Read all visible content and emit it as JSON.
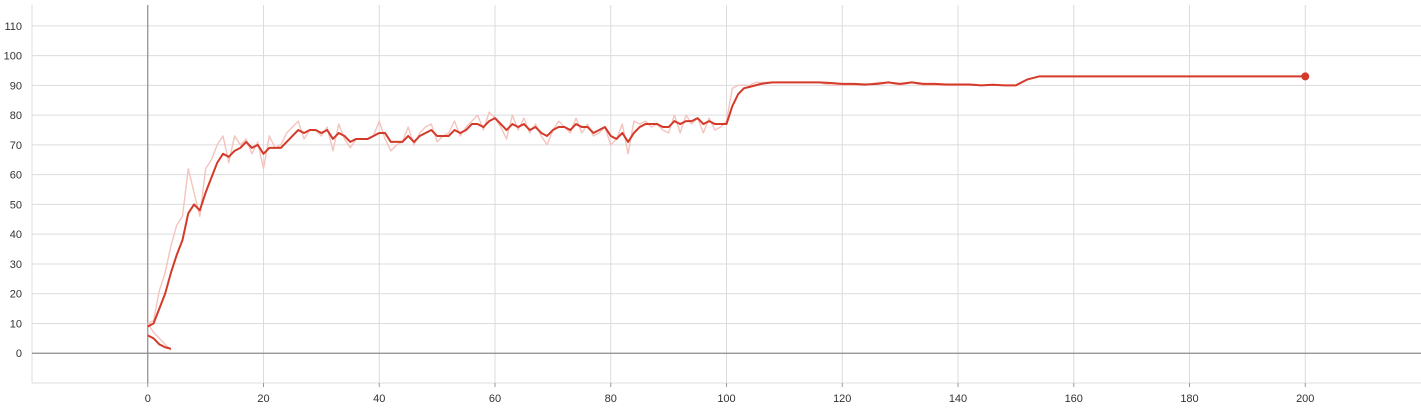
{
  "chart_data": {
    "type": "line",
    "title": "",
    "xlabel": "",
    "ylabel": "",
    "xlim": [
      -20,
      220
    ],
    "ylim": [
      -10,
      117
    ],
    "grid": true,
    "x_ticks": [
      0,
      20,
      40,
      60,
      80,
      100,
      120,
      140,
      160,
      180,
      200
    ],
    "y_ticks": [
      0,
      10,
      20,
      30,
      40,
      50,
      60,
      70,
      80,
      90,
      100,
      110
    ],
    "colors": {
      "smoothed": "#d43a2a",
      "raw": "#f3c4be"
    },
    "series": [
      {
        "kind": "raw",
        "x": [
          0,
          1,
          2,
          3,
          4,
          5,
          6,
          7,
          8,
          9,
          10,
          11,
          12,
          13,
          14,
          15,
          16,
          17,
          18,
          19,
          20,
          21,
          22,
          23,
          24,
          25,
          26,
          27,
          28,
          29,
          30,
          31,
          32,
          33,
          34,
          35,
          36,
          37,
          38,
          39,
          40,
          41,
          42,
          43,
          44,
          45,
          46,
          47,
          48,
          49,
          50,
          51,
          52,
          53,
          54,
          55,
          56,
          57,
          58,
          59,
          60,
          61,
          62,
          63,
          64,
          65,
          66,
          67,
          68,
          69,
          70,
          71,
          72,
          73,
          74,
          75,
          76,
          77,
          78,
          79,
          80,
          81,
          82,
          83,
          84,
          85,
          86,
          87,
          88,
          89,
          90,
          91,
          92,
          93,
          94,
          95,
          96,
          97,
          98,
          99,
          100,
          101,
          102,
          103,
          104,
          105,
          106,
          107,
          108,
          109,
          110,
          112,
          114,
          116,
          118,
          120,
          122,
          124,
          126,
          128,
          130,
          132,
          134,
          136,
          138,
          140,
          142,
          144,
          146,
          148,
          150,
          152,
          154,
          156,
          158,
          160,
          170,
          180,
          190,
          200
        ],
        "y": [
          10,
          11,
          21,
          27,
          36,
          43,
          46,
          62,
          54,
          46,
          62,
          65,
          70,
          73,
          64,
          73,
          70,
          72,
          67,
          71,
          62,
          73,
          69,
          70,
          74,
          76,
          78,
          72,
          75,
          75,
          73,
          76,
          68,
          77,
          72,
          69,
          72,
          72,
          72,
          73,
          78,
          72,
          68,
          70,
          71,
          76,
          70,
          74,
          76,
          77,
          71,
          73,
          74,
          78,
          73,
          76,
          78,
          80,
          75,
          81,
          79,
          76,
          72,
          80,
          75,
          79,
          74,
          77,
          73,
          70,
          75,
          78,
          76,
          74,
          79,
          74,
          77,
          73,
          74,
          76,
          70,
          72,
          77,
          67,
          78,
          77,
          78,
          76,
          77,
          75,
          74,
          80,
          74,
          80,
          77,
          79,
          74,
          79,
          75,
          76,
          78,
          89,
          90,
          90,
          90,
          91,
          91,
          91,
          91,
          91,
          91,
          91,
          91,
          91,
          90,
          90,
          90,
          90,
          91,
          91,
          90,
          91,
          90,
          90,
          90,
          90,
          90,
          90,
          90,
          90,
          90,
          92,
          93,
          93,
          93,
          93,
          93,
          93,
          93,
          93
        ],
        "tail_x": [
          0,
          1,
          2,
          3,
          4
        ],
        "tail_y": [
          10,
          7,
          5,
          3,
          1
        ]
      },
      {
        "kind": "smoothed",
        "x": [
          0,
          1,
          2,
          3,
          4,
          5,
          6,
          7,
          8,
          9,
          10,
          11,
          12,
          13,
          14,
          15,
          16,
          17,
          18,
          19,
          20,
          21,
          22,
          23,
          24,
          25,
          26,
          27,
          28,
          29,
          30,
          31,
          32,
          33,
          34,
          35,
          36,
          37,
          38,
          39,
          40,
          41,
          42,
          43,
          44,
          45,
          46,
          47,
          48,
          49,
          50,
          51,
          52,
          53,
          54,
          55,
          56,
          57,
          58,
          59,
          60,
          61,
          62,
          63,
          64,
          65,
          66,
          67,
          68,
          69,
          70,
          71,
          72,
          73,
          74,
          75,
          76,
          77,
          78,
          79,
          80,
          81,
          82,
          83,
          84,
          85,
          86,
          87,
          88,
          89,
          90,
          91,
          92,
          93,
          94,
          95,
          96,
          97,
          98,
          99,
          100,
          101,
          102,
          103,
          104,
          105,
          106,
          107,
          108,
          109,
          110,
          112,
          114,
          116,
          118,
          120,
          122,
          124,
          126,
          128,
          130,
          132,
          134,
          136,
          138,
          140,
          142,
          144,
          146,
          148,
          150,
          152,
          154,
          156,
          158,
          160,
          170,
          180,
          190,
          200
        ],
        "y": [
          9,
          10,
          15,
          20,
          27,
          33,
          38,
          47,
          50,
          48,
          54,
          59,
          64,
          67,
          66,
          68,
          69,
          71,
          69,
          70,
          67,
          69,
          69,
          69,
          71,
          73,
          75,
          74,
          75,
          75,
          74,
          75,
          72,
          74,
          73,
          71,
          72,
          72,
          72,
          73,
          74,
          74,
          71,
          71,
          71,
          73,
          71,
          73,
          74,
          75,
          73,
          73,
          73,
          75,
          74,
          75,
          77,
          77,
          76,
          78,
          79,
          77,
          75,
          77,
          76,
          77,
          75,
          76,
          74,
          73,
          75,
          76,
          76,
          75,
          77,
          76,
          76,
          74,
          75,
          76,
          73,
          72,
          74,
          71,
          74,
          76,
          77,
          77,
          77,
          76,
          76,
          78,
          77,
          78,
          78,
          79,
          77,
          78,
          77,
          77,
          77,
          83,
          87,
          89,
          89.5,
          90,
          90.5,
          90.8,
          91,
          91,
          91,
          91,
          91,
          91,
          90.8,
          90.5,
          90.5,
          90.3,
          90.5,
          91,
          90.5,
          91,
          90.5,
          90.5,
          90.3,
          90.3,
          90.3,
          90,
          90.2,
          90,
          90,
          92,
          93,
          93,
          93,
          93,
          93,
          93,
          93,
          93
        ],
        "tail_x": [
          0,
          1,
          2,
          3,
          4
        ],
        "tail_y": [
          6,
          5,
          3,
          2,
          1.5
        ]
      }
    ]
  }
}
